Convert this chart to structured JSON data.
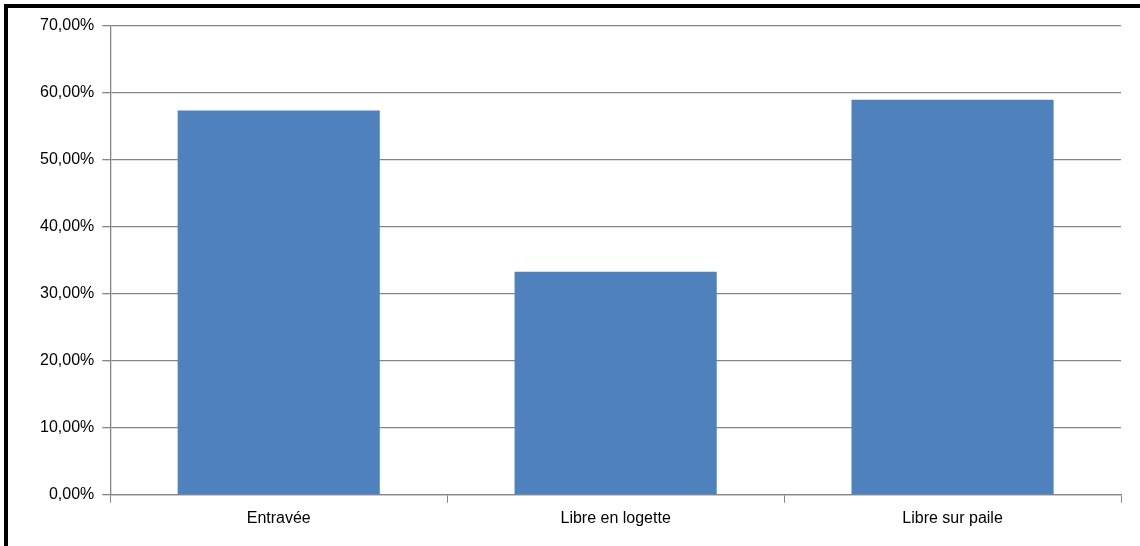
{
  "chart_data": {
    "type": "bar",
    "categories": [
      "Entravée",
      "Libre en logette",
      "Libre sur paile"
    ],
    "values": [
      57.4,
      33.3,
      59.0
    ],
    "color": "#4f81bd",
    "ylim": [
      0,
      70
    ],
    "yticks": [
      {
        "value": 0,
        "label": "0,00%"
      },
      {
        "value": 10,
        "label": "10,00%"
      },
      {
        "value": 20,
        "label": "20,00%"
      },
      {
        "value": 30,
        "label": "30,00%"
      },
      {
        "value": 40,
        "label": "40,00%"
      },
      {
        "value": 50,
        "label": "50,00%"
      },
      {
        "value": 60,
        "label": "60,00%"
      },
      {
        "value": 70,
        "label": "70,00%"
      }
    ],
    "grid": "y",
    "legend": false
  }
}
